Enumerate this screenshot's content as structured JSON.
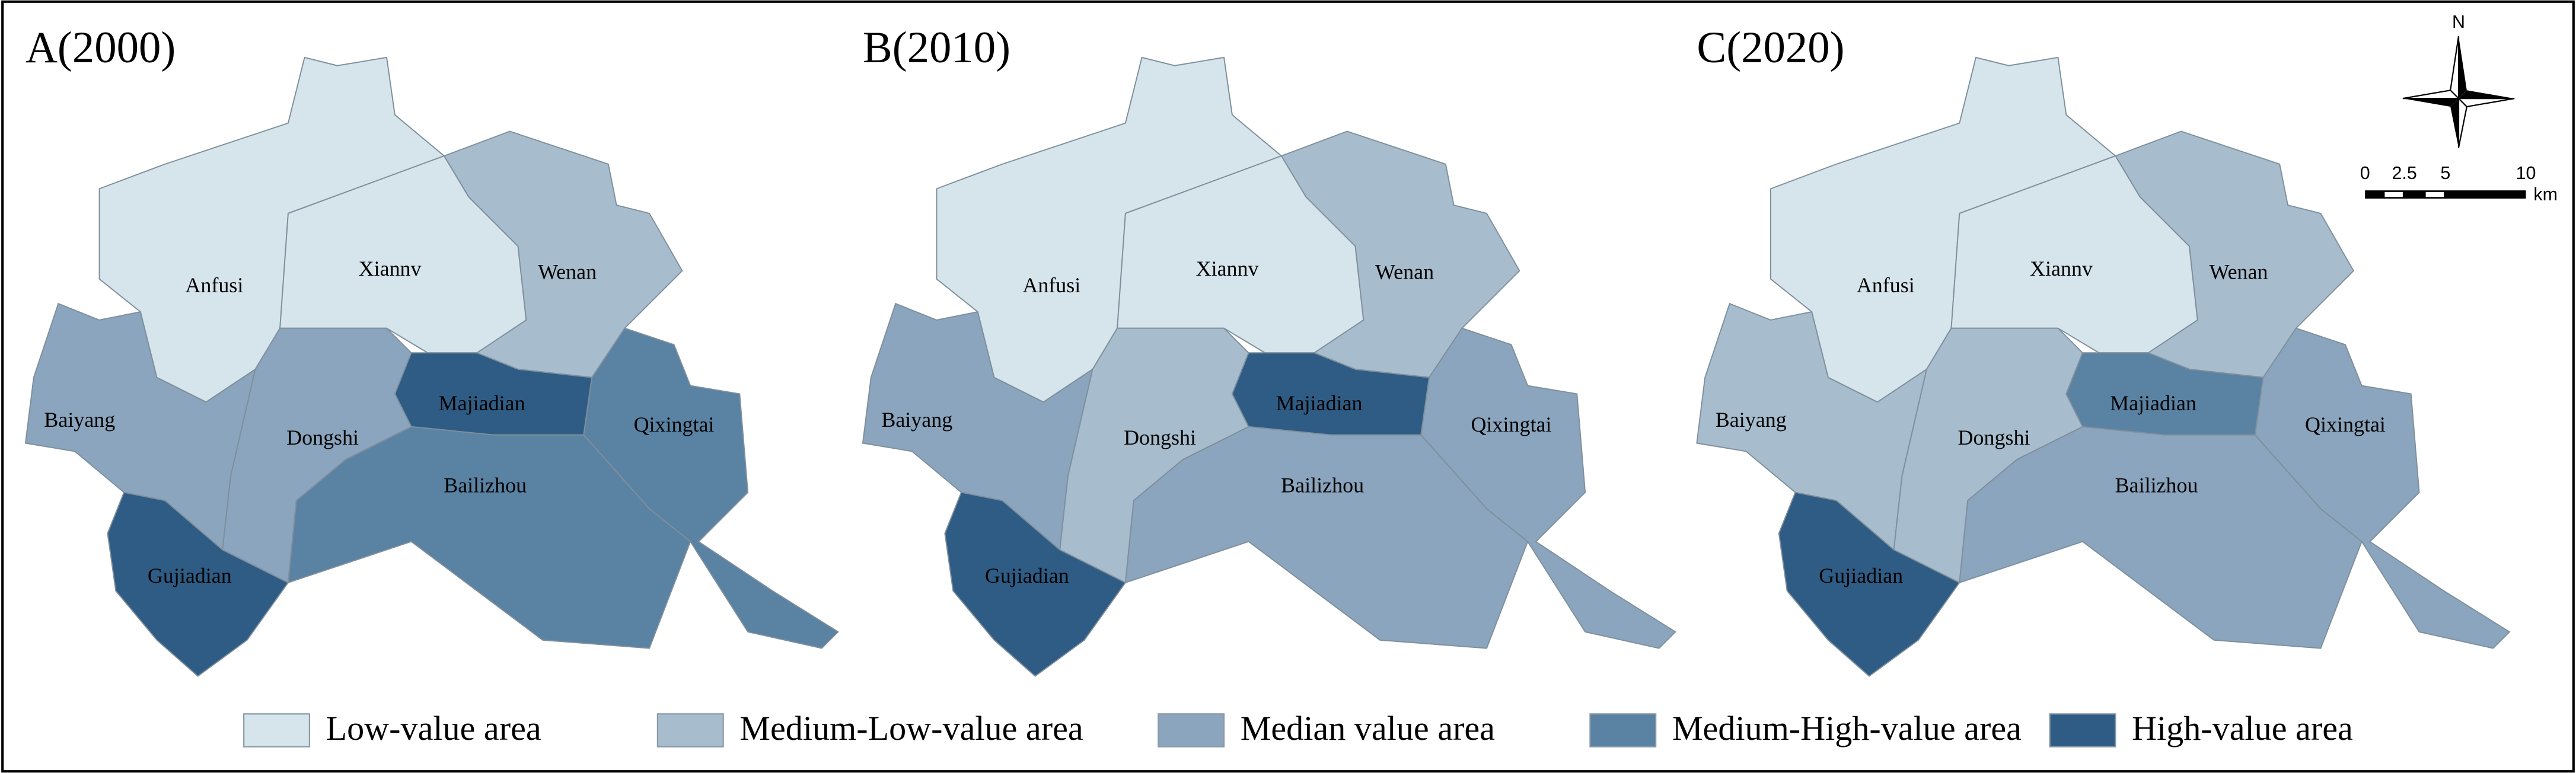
{
  "panels": [
    {
      "title": "A(2000)",
      "regions": [
        {
          "name": "Anfusi",
          "level": "Low-value area"
        },
        {
          "name": "Xiannv",
          "level": "Low-value area"
        },
        {
          "name": "Wenan",
          "level": "Medium-Low-value area"
        },
        {
          "name": "Baiyang",
          "level": "Median value area"
        },
        {
          "name": "Dongshi",
          "level": "Median value area"
        },
        {
          "name": "Majiadian",
          "level": "High-value area"
        },
        {
          "name": "Qixingtai",
          "level": "Medium-High-value area"
        },
        {
          "name": "Bailizhou",
          "level": "Medium-High-value area"
        },
        {
          "name": "Gujiadian",
          "level": "High-value area"
        }
      ]
    },
    {
      "title": "B(2010)",
      "regions": [
        {
          "name": "Anfusi",
          "level": "Low-value area"
        },
        {
          "name": "Xiannv",
          "level": "Low-value area"
        },
        {
          "name": "Wenan",
          "level": "Medium-Low-value area"
        },
        {
          "name": "Baiyang",
          "level": "Median value area"
        },
        {
          "name": "Dongshi",
          "level": "Medium-Low-value area"
        },
        {
          "name": "Majiadian",
          "level": "High-value area"
        },
        {
          "name": "Qixingtai",
          "level": "Median value area"
        },
        {
          "name": "Bailizhou",
          "level": "Median value area"
        },
        {
          "name": "Gujiadian",
          "level": "High-value area"
        }
      ]
    },
    {
      "title": "C(2020)",
      "regions": [
        {
          "name": "Anfusi",
          "level": "Low-value area"
        },
        {
          "name": "Xiannv",
          "level": "Low-value area"
        },
        {
          "name": "Wenan",
          "level": "Medium-Low-value area"
        },
        {
          "name": "Baiyang",
          "level": "Medium-Low-value area"
        },
        {
          "name": "Dongshi",
          "level": "Medium-Low-value area"
        },
        {
          "name": "Majiadian",
          "level": "Medium-High-value area"
        },
        {
          "name": "Qixingtai",
          "level": "Median value area"
        },
        {
          "name": "Bailizhou",
          "level": "Median value area"
        },
        {
          "name": "Gujiadian",
          "level": "High-value area"
        }
      ]
    }
  ],
  "legend": [
    {
      "label": "Low-value area",
      "color": "#d6e5ec"
    },
    {
      "label": "Medium-Low-value area",
      "color": "#a7bdcd"
    },
    {
      "label": "Median value area",
      "color": "#8aa5bd"
    },
    {
      "label": "Medium-High-value area",
      "color": "#5a82a3"
    },
    {
      "label": "High-value area",
      "color": "#2f5c84"
    }
  ],
  "compass": {
    "north": "N"
  },
  "scale_bar": {
    "ticks": [
      "0",
      "2.5",
      "5",
      "10"
    ],
    "unit": "km"
  }
}
